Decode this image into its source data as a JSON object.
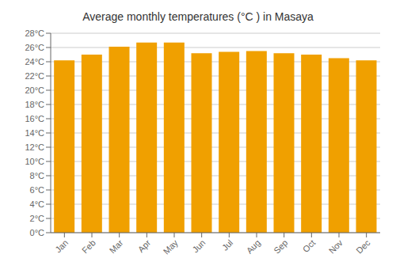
{
  "chart_data": {
    "type": "bar",
    "title": "Average monthly temperatures (°C ) in Masaya",
    "categories": [
      "Jan",
      "Feb",
      "Mar",
      "Apr",
      "May",
      "Jun",
      "Jul",
      "Aug",
      "Sep",
      "Oct",
      "Nov",
      "Dec"
    ],
    "values": [
      24.2,
      25.0,
      26.1,
      26.7,
      26.7,
      25.2,
      25.4,
      25.5,
      25.2,
      25.0,
      24.5,
      24.2
    ],
    "color": "#F0A000",
    "ylim": [
      0,
      28
    ],
    "yticks": [
      {
        "value": 0,
        "label": "0°C"
      },
      {
        "value": 2,
        "label": "2°C"
      },
      {
        "value": 4,
        "label": "4°C"
      },
      {
        "value": 6,
        "label": "6°C"
      },
      {
        "value": 8,
        "label": "8°C"
      },
      {
        "value": 10,
        "label": "10°C"
      },
      {
        "value": 12,
        "label": "12°C"
      },
      {
        "value": 14,
        "label": "14°C"
      },
      {
        "value": 16,
        "label": "16°C"
      },
      {
        "value": 18,
        "label": "18°C"
      },
      {
        "value": 20,
        "label": "20°C"
      },
      {
        "value": 22,
        "label": "22°C"
      },
      {
        "value": 24,
        "label": "24°C"
      },
      {
        "value": 26,
        "label": "26°C"
      },
      {
        "value": 28,
        "label": "28°C"
      }
    ],
    "grid": true
  }
}
